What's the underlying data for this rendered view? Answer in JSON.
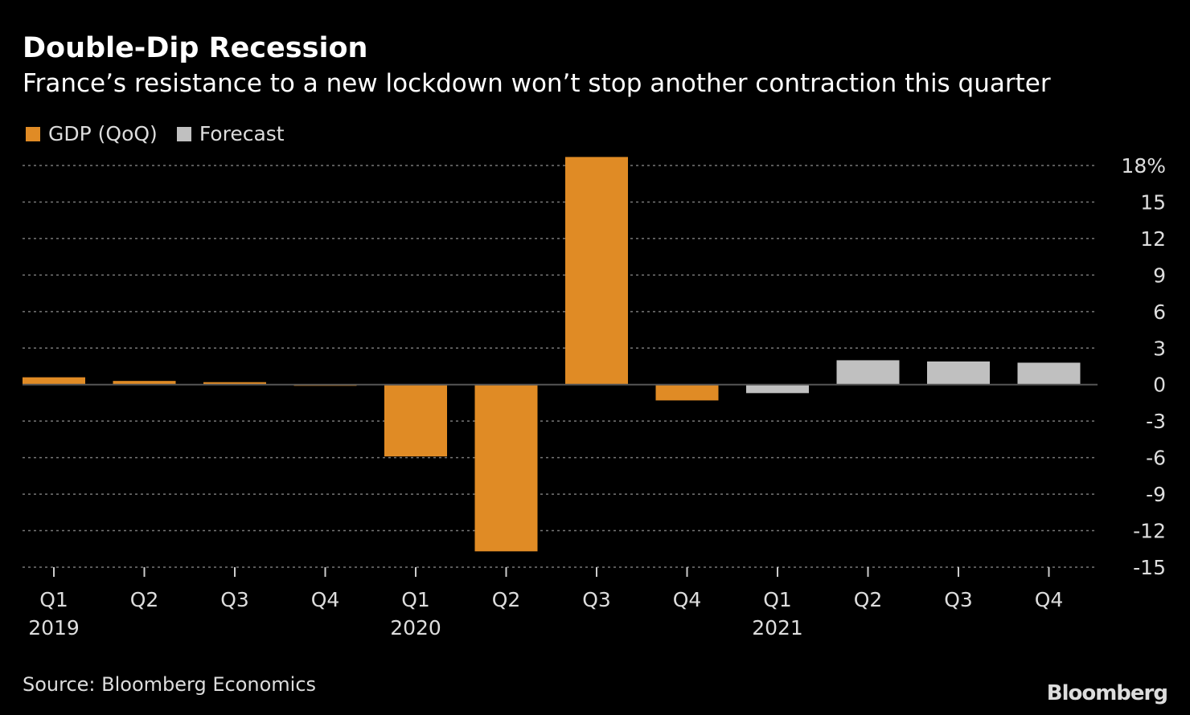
{
  "chart_data": {
    "type": "bar",
    "title": "Double-Dip Recession",
    "subtitle": "France’s resistance to a new lockdown won’t stop another contraction this quarter",
    "categories": [
      "Q1",
      "Q2",
      "Q3",
      "Q4",
      "Q1",
      "Q2",
      "Q3",
      "Q4",
      "Q1",
      "Q2",
      "Q3",
      "Q4"
    ],
    "year_labels": [
      "2019",
      "",
      "",
      "",
      "2020",
      "",
      "",
      "",
      "2021",
      "",
      "",
      ""
    ],
    "series": [
      {
        "name": "GDP (QoQ)",
        "color": "#e08b25",
        "values": [
          0.6,
          0.3,
          0.2,
          -0.1,
          -5.9,
          -13.7,
          18.7,
          -1.3,
          null,
          null,
          null,
          null
        ]
      },
      {
        "name": "Forecast",
        "color": "#c0c0c0",
        "values": [
          null,
          null,
          null,
          null,
          null,
          null,
          null,
          null,
          -0.7,
          2.0,
          1.9,
          1.8
        ]
      }
    ],
    "ylim": [
      -15,
      18
    ],
    "yticks": [
      18,
      15,
      12,
      9,
      6,
      3,
      0,
      -3,
      -6,
      -9,
      -12,
      -15
    ],
    "ytick_labels": [
      "18%",
      "15",
      "12",
      "9",
      "6",
      "3",
      "0",
      "-3",
      "-6",
      "-9",
      "-12",
      "-15"
    ],
    "grid": true,
    "legend": "top-left",
    "source": "Source: Bloomberg Economics",
    "logo": "Bloomberg"
  }
}
